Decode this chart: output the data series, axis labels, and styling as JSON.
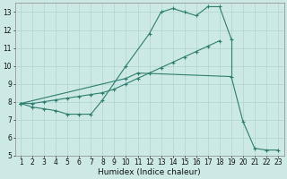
{
  "title": "",
  "xlabel": "Humidex (Indice chaleur)",
  "ylabel": "",
  "x": [
    1,
    2,
    3,
    4,
    5,
    6,
    7,
    8,
    9,
    10,
    11,
    12,
    13,
    14,
    15,
    16,
    17,
    18,
    19,
    20,
    21,
    22,
    23
  ],
  "line1_x": [
    1,
    2,
    3,
    4,
    5,
    6,
    7,
    8,
    10,
    12,
    13,
    14,
    15,
    16,
    17,
    18,
    19
  ],
  "line1_y": [
    7.9,
    7.7,
    7.6,
    7.5,
    7.3,
    7.3,
    7.3,
    8.1,
    10.0,
    11.8,
    13.0,
    13.2,
    13.0,
    12.8,
    13.3,
    13.3,
    11.5
  ],
  "line2_x": [
    1,
    10,
    11,
    19,
    20,
    21,
    22,
    23
  ],
  "line2_y": [
    7.9,
    9.3,
    9.6,
    9.4,
    6.9,
    5.4,
    5.3,
    5.3
  ],
  "line3_x": [
    1,
    2,
    3,
    4,
    5,
    6,
    7,
    8,
    9,
    10,
    11,
    12,
    13,
    14,
    15,
    16,
    17,
    18
  ],
  "line3_y": [
    7.9,
    7.9,
    8.0,
    8.1,
    8.2,
    8.3,
    8.4,
    8.5,
    8.7,
    9.0,
    9.3,
    9.6,
    9.9,
    10.2,
    10.5,
    10.8,
    11.1,
    11.4
  ],
  "color": "#2e7d6e",
  "bg_color": "#cce9e6",
  "grid_color": "#aed4d0",
  "ylim": [
    5,
    13.5
  ],
  "xlim": [
    0.5,
    23.5
  ],
  "yticks": [
    5,
    6,
    7,
    8,
    9,
    10,
    11,
    12,
    13
  ],
  "xticks": [
    1,
    2,
    3,
    4,
    5,
    6,
    7,
    8,
    9,
    10,
    11,
    12,
    13,
    14,
    15,
    16,
    17,
    18,
    19,
    20,
    21,
    22,
    23
  ],
  "figsize": [
    3.2,
    2.0
  ],
  "dpi": 100,
  "tick_fontsize": 5.5,
  "xlabel_fontsize": 6.5
}
